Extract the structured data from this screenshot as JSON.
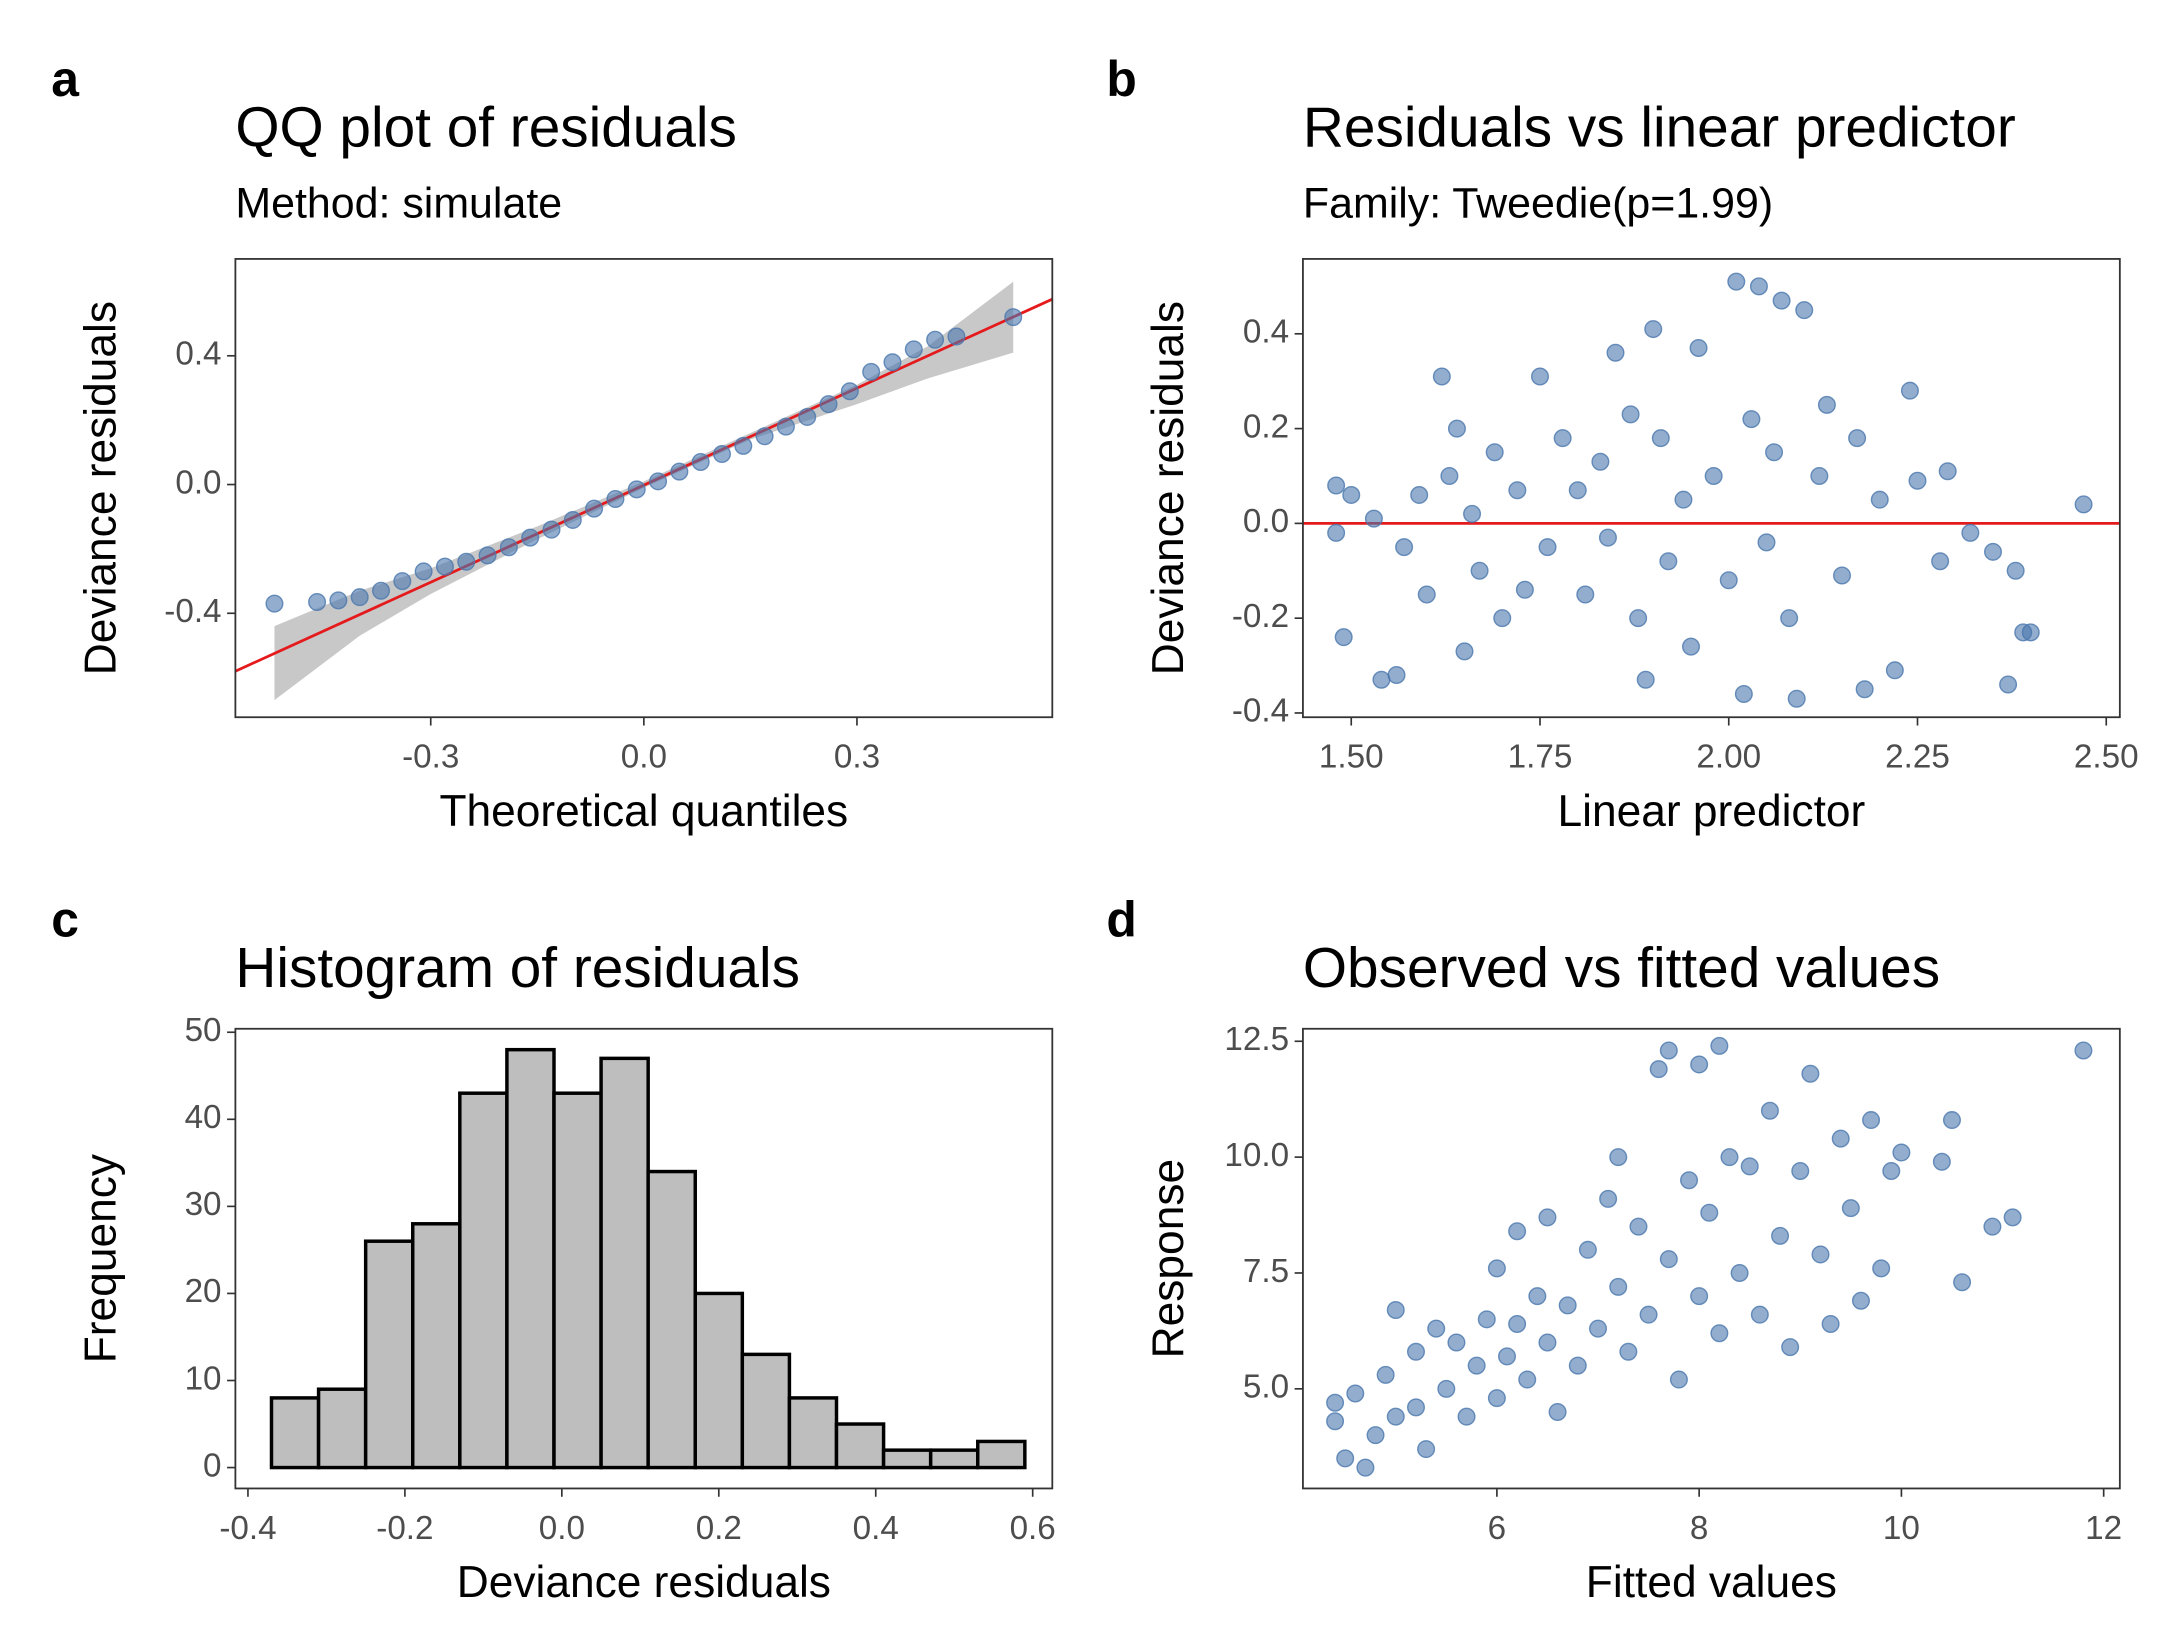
{
  "chart_data": [
    {
      "type": "scatter",
      "label": "a",
      "title": "QQ plot of residuals",
      "subtitle": "Method: simulate",
      "x_label": "Theoretical quantiles",
      "y_label": "Deviance residuals",
      "color": "#4a77ad",
      "xlim": [
        -0.575,
        0.575
      ],
      "ylim": [
        -0.723,
        0.701
      ],
      "xticks": [
        -0.3,
        {
          "value": 0,
          "label": "0.0"
        },
        0.3
      ],
      "yticks": [
        -0.4,
        {
          "value": 0,
          "label": "0.0"
        },
        0.4
      ],
      "x": [
        -0.52,
        -0.46,
        -0.43,
        -0.4,
        -0.37,
        -0.34,
        -0.31,
        -0.28,
        -0.25,
        -0.22,
        -0.19,
        -0.16,
        -0.13,
        -0.1,
        -0.07,
        -0.04,
        -0.01,
        0.02,
        0.05,
        0.08,
        0.11,
        0.14,
        0.17,
        0.2,
        0.23,
        0.26,
        0.29,
        0.32,
        0.35,
        0.38,
        0.41,
        0.44,
        0.52
      ],
      "y": [
        -0.37,
        -0.365,
        -0.36,
        -0.35,
        -0.33,
        -0.3,
        -0.27,
        -0.255,
        -0.24,
        -0.22,
        -0.195,
        -0.165,
        -0.14,
        -0.11,
        -0.075,
        -0.045,
        -0.015,
        0.01,
        0.04,
        0.07,
        0.095,
        0.12,
        0.15,
        0.18,
        0.21,
        0.25,
        0.29,
        0.35,
        0.38,
        0.42,
        0.45,
        0.46,
        0.52
      ],
      "ref_line": {
        "color": "#e41a1c",
        "x": [
          -0.575,
          0.575
        ],
        "y": [
          -0.58,
          0.576
        ]
      },
      "band": {
        "color": "#c8c8c8",
        "x": [
          -0.52,
          -0.4,
          -0.3,
          -0.15,
          0,
          0.15,
          0.3,
          0.4,
          0.52
        ],
        "upper": [
          -0.44,
          -0.33,
          -0.26,
          -0.13,
          0.01,
          0.16,
          0.31,
          0.43,
          0.63
        ],
        "lower": [
          -0.67,
          -0.47,
          -0.34,
          -0.17,
          -0.01,
          0.14,
          0.25,
          0.33,
          0.41
        ]
      }
    },
    {
      "type": "scatter",
      "label": "b",
      "title": "Residuals vs linear predictor",
      "subtitle": "Family: Tweedie(p=1.99)",
      "x_label": "Linear predictor",
      "y_label": "Deviance residuals",
      "color": "#4a77ad",
      "xlim": [
        1.436,
        2.518
      ],
      "ylim": [
        -0.409,
        0.558
      ],
      "xticks": [
        {
          "value": 1.5,
          "label": "1.50"
        },
        1.75,
        {
          "value": 2,
          "label": "2.00"
        },
        2.25,
        {
          "value": 2.5,
          "label": "2.50"
        }
      ],
      "yticks": [
        -0.4,
        -0.2,
        {
          "value": 0,
          "label": "0.0"
        },
        0.2,
        0.4
      ],
      "hline": 0,
      "hline_color": "#e41a1c",
      "x": [
        1.48,
        1.48,
        1.49,
        1.5,
        1.53,
        1.54,
        1.56,
        1.57,
        1.59,
        1.6,
        1.62,
        1.63,
        1.64,
        1.65,
        1.66,
        1.67,
        1.69,
        1.7,
        1.72,
        1.73,
        1.75,
        1.76,
        1.78,
        1.8,
        1.81,
        1.83,
        1.84,
        1.85,
        1.87,
        1.88,
        1.89,
        1.9,
        1.91,
        1.92,
        1.94,
        1.95,
        1.96,
        1.98,
        2.0,
        2.01,
        2.02,
        2.03,
        2.04,
        2.05,
        2.06,
        2.07,
        2.08,
        2.09,
        2.1,
        2.12,
        2.13,
        2.15,
        2.17,
        2.18,
        2.2,
        2.22,
        2.24,
        2.25,
        2.28,
        2.29,
        2.32,
        2.35,
        2.37,
        2.38,
        2.39,
        2.4,
        2.47
      ],
      "y": [
        0.08,
        -0.02,
        -0.24,
        0.06,
        0.01,
        -0.33,
        -0.32,
        -0.05,
        0.06,
        -0.15,
        0.31,
        0.1,
        0.2,
        -0.27,
        0.02,
        -0.1,
        0.15,
        -0.2,
        0.07,
        -0.14,
        0.31,
        -0.05,
        0.18,
        0.07,
        -0.15,
        0.13,
        -0.03,
        0.36,
        0.23,
        -0.2,
        -0.33,
        0.41,
        0.18,
        -0.08,
        0.05,
        -0.26,
        0.37,
        0.1,
        -0.12,
        0.51,
        -0.36,
        0.22,
        0.5,
        -0.04,
        0.15,
        0.47,
        -0.2,
        -0.37,
        0.45,
        0.1,
        0.25,
        -0.11,
        0.18,
        -0.35,
        0.05,
        -0.31,
        0.28,
        0.09,
        -0.08,
        0.11,
        -0.02,
        -0.06,
        -0.34,
        -0.1,
        -0.23,
        -0.23,
        0.04
      ]
    },
    {
      "type": "histogram",
      "label": "c",
      "title": "Histogram of residuals",
      "x_label": "Deviance residuals",
      "y_label": "Frequency",
      "color": "#bebebe",
      "xlim": [
        -0.416,
        0.625
      ],
      "ylim": [
        -2.4,
        50.4
      ],
      "xticks": [
        -0.4,
        -0.2,
        {
          "value": 0,
          "label": "0.0"
        },
        0.2,
        0.4,
        0.6
      ],
      "yticks": [
        0,
        10,
        20,
        30,
        40,
        50
      ],
      "bins": [
        -0.37,
        -0.31,
        -0.25,
        -0.19,
        -0.13,
        -0.07,
        -0.01,
        0.05,
        0.11,
        0.17,
        0.23,
        0.29,
        0.35,
        0.41,
        0.47,
        0.53,
        0.59
      ],
      "counts": [
        8,
        9,
        26,
        28,
        43,
        48,
        43,
        47,
        34,
        20,
        13,
        8,
        5,
        2,
        2,
        3
      ]
    },
    {
      "type": "scatter",
      "label": "d",
      "title": "Observed vs fitted values",
      "x_label": "Fitted values",
      "y_label": "Response",
      "color": "#4a77ad",
      "xlim": [
        4.082,
        12.16
      ],
      "ylim": [
        2.85,
        12.77
      ],
      "xticks": [
        6,
        8,
        10,
        12
      ],
      "yticks": [
        {
          "value": 5,
          "label": "5.0"
        },
        7.5,
        {
          "value": 10,
          "label": "10.0"
        },
        12.5
      ],
      "x": [
        4.4,
        4.4,
        4.5,
        4.6,
        4.7,
        4.8,
        4.9,
        5.0,
        5.0,
        5.2,
        5.2,
        5.3,
        5.4,
        5.5,
        5.6,
        5.7,
        5.8,
        5.9,
        6.0,
        6.0,
        6.1,
        6.2,
        6.2,
        6.3,
        6.4,
        6.5,
        6.5,
        6.6,
        6.7,
        6.8,
        6.9,
        7.0,
        7.1,
        7.2,
        7.2,
        7.3,
        7.4,
        7.5,
        7.6,
        7.7,
        7.7,
        7.8,
        7.9,
        8.0,
        8.0,
        8.1,
        8.2,
        8.2,
        8.3,
        8.4,
        8.5,
        8.6,
        8.7,
        8.8,
        8.9,
        9.0,
        9.1,
        9.2,
        9.3,
        9.4,
        9.5,
        9.6,
        9.7,
        9.8,
        9.9,
        10.0,
        10.4,
        10.5,
        10.6,
        10.9,
        11.1,
        11.8
      ],
      "y": [
        4.3,
        4.7,
        3.5,
        4.9,
        3.3,
        4.0,
        5.3,
        4.4,
        6.7,
        4.6,
        5.8,
        3.7,
        6.3,
        5.0,
        6.0,
        4.4,
        5.5,
        6.5,
        4.8,
        7.6,
        5.7,
        6.4,
        8.4,
        5.2,
        7.0,
        6.0,
        8.7,
        4.5,
        6.8,
        5.5,
        8.0,
        6.3,
        9.1,
        7.2,
        10.0,
        5.8,
        8.5,
        6.6,
        11.9,
        7.8,
        12.3,
        5.2,
        9.5,
        7.0,
        12.0,
        8.8,
        6.2,
        12.4,
        10.0,
        7.5,
        9.8,
        6.6,
        11.0,
        8.3,
        5.9,
        9.7,
        11.8,
        7.9,
        6.4,
        10.4,
        8.9,
        6.9,
        10.8,
        7.6,
        9.7,
        10.1,
        9.9,
        10.8,
        7.3,
        8.5,
        8.7,
        12.3
      ]
    }
  ]
}
